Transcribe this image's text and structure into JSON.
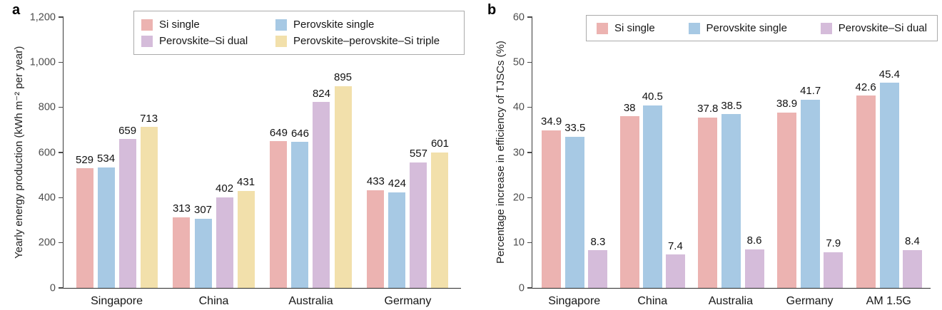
{
  "chart_data": [
    {
      "type": "bar",
      "panel_label": "a",
      "title": "",
      "ylabel": "Yearly energy production (kWh m⁻² per year)",
      "xlabel": "",
      "ylim": [
        0,
        1200
      ],
      "ytick_step": 200,
      "ytick_labels": [
        "0",
        "200",
        "400",
        "600",
        "800",
        "1,000",
        "1,200"
      ],
      "grid": false,
      "legend_position": "top",
      "legend_columns": 2,
      "categories": [
        "Singapore",
        "China",
        "Australia",
        "Germany"
      ],
      "series": [
        {
          "name": "Si single",
          "color": "#ecb3b1",
          "values": [
            529,
            313,
            649,
            433
          ]
        },
        {
          "name": "Perovskite single",
          "color": "#a7c9e4",
          "values": [
            534,
            307,
            646,
            424
          ]
        },
        {
          "name": "Perovskite–Si dual",
          "color": "#d5bcda",
          "values": [
            659,
            402,
            824,
            557
          ]
        },
        {
          "name": "Perovskite–perovskite–Si triple",
          "color": "#f2e0ab",
          "values": [
            713,
            431,
            895,
            601
          ]
        }
      ]
    },
    {
      "type": "bar",
      "panel_label": "b",
      "title": "",
      "ylabel": "Percentage increase in efficiency of TJSCs (%)",
      "xlabel": "",
      "ylim": [
        0,
        60
      ],
      "ytick_step": 10,
      "ytick_labels": [
        "0",
        "10",
        "20",
        "30",
        "40",
        "50",
        "60"
      ],
      "grid": false,
      "legend_position": "top",
      "legend_columns": 3,
      "categories": [
        "Singapore",
        "China",
        "Australia",
        "Germany",
        "AM 1.5G"
      ],
      "series": [
        {
          "name": "Si single",
          "color": "#ecb3b1",
          "values": [
            34.9,
            38,
            37.8,
            38.9,
            42.6
          ]
        },
        {
          "name": "Perovskite single",
          "color": "#a7c9e4",
          "values": [
            33.5,
            40.5,
            38.5,
            41.7,
            45.4
          ]
        },
        {
          "name": "Perovskite–Si dual",
          "color": "#d5bcda",
          "values": [
            8.3,
            7.4,
            8.6,
            7.9,
            8.4
          ]
        }
      ]
    }
  ]
}
